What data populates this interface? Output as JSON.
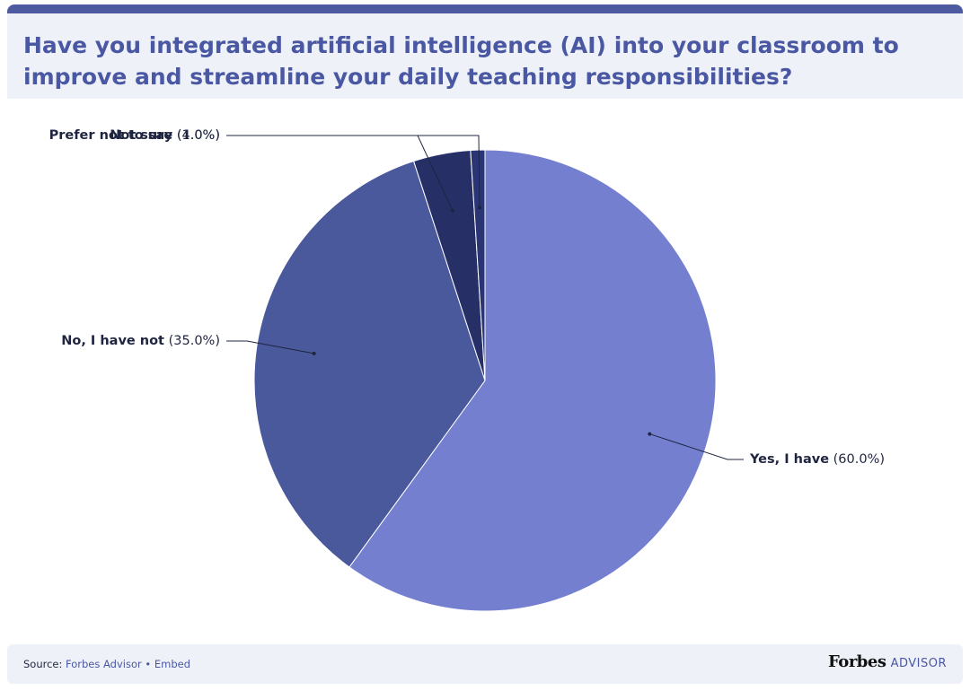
{
  "chart_data": {
    "type": "pie",
    "title": "Have you integrated artificial intelligence (AI) into your classroom to improve and streamline your daily teaching responsibilities?",
    "categories": [
      "Yes, I have",
      "No, I have not",
      "Not sure",
      "Prefer not to say"
    ],
    "values": [
      60.0,
      35.0,
      4.0,
      1.0
    ],
    "value_labels": [
      "(60.0%)",
      "(35.0%)",
      "(4.0%)",
      "(1.0%)"
    ],
    "colors": [
      "#7480cf",
      "#4a589c",
      "#262f66",
      "#2b3573"
    ]
  },
  "footer": {
    "source_label": "Source:",
    "source": "Forbes Advisor",
    "separator": "•",
    "embed": "Embed",
    "brand": "Forbes",
    "brand_sub": "ADVISOR"
  }
}
